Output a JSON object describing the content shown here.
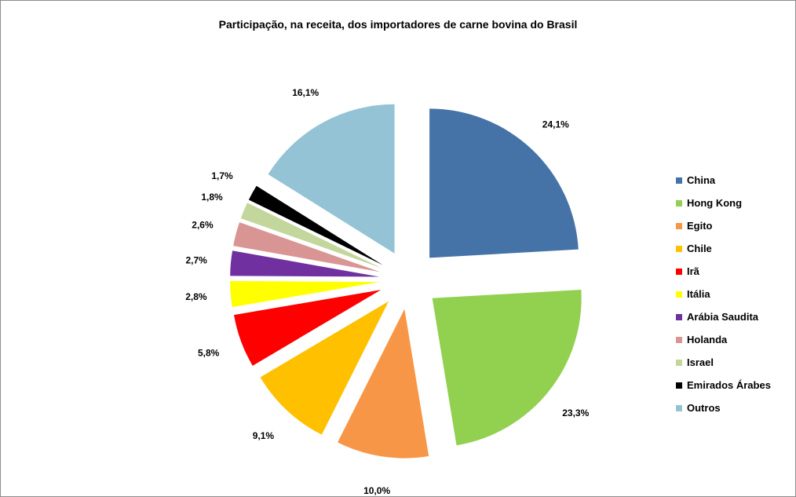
{
  "chart_data": {
    "type": "pie",
    "title": "Participação, na receita, dos importadores de carne bovina do Brasil",
    "legend_position": "right",
    "exploded": true,
    "slices": [
      {
        "label": "China",
        "value": 24.1,
        "value_label": "24,1%",
        "color": "#4572A7"
      },
      {
        "label": "Hong Kong",
        "value": 23.3,
        "value_label": "23,3%",
        "color": "#92D050"
      },
      {
        "label": "Egito",
        "value": 10.0,
        "value_label": "10,0%",
        "color": "#F79646"
      },
      {
        "label": "Chile",
        "value": 9.1,
        "value_label": "9,1%",
        "color": "#FFC000"
      },
      {
        "label": "Irã",
        "value": 5.8,
        "value_label": "5,8%",
        "color": "#FF0000"
      },
      {
        "label": "Itália",
        "value": 2.8,
        "value_label": "2,8%",
        "color": "#FFFF00"
      },
      {
        "label": "Arábia Saudita",
        "value": 2.7,
        "value_label": "2,7%",
        "color": "#7030A0"
      },
      {
        "label": "Holanda",
        "value": 2.6,
        "value_label": "2,6%",
        "color": "#D99594"
      },
      {
        "label": "Israel",
        "value": 1.8,
        "value_label": "1,8%",
        "color": "#C3D69B"
      },
      {
        "label": "Emirados Árabes",
        "value": 1.7,
        "value_label": "1,7%",
        "color": "#000000"
      },
      {
        "label": "Outros",
        "value": 16.1,
        "value_label": "16,1%",
        "color": "#93C3D5"
      }
    ]
  }
}
